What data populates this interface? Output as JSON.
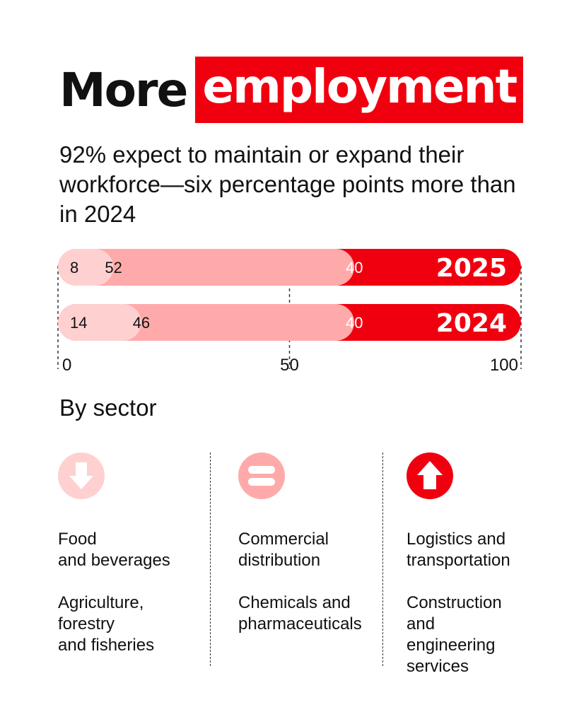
{
  "header": {
    "title_part1": "More",
    "title_part2": "employment",
    "subtitle": "92% expect to maintain or expand their workforce—six percentage points more than in 2024"
  },
  "colors": {
    "decrease": "#ffd0d0",
    "maintain": "#ffaaaa",
    "expand": "#f0000f",
    "accent": "#f0000f"
  },
  "chart_data": {
    "type": "bar",
    "orientation": "horizontal",
    "stacked": true,
    "categories": [
      "2025",
      "2024"
    ],
    "series": [
      {
        "values": [
          8,
          14
        ]
      },
      {
        "values": [
          52,
          46
        ]
      },
      {
        "values": [
          40,
          40
        ]
      }
    ],
    "xlim": [
      0,
      100
    ],
    "xticks": [
      0,
      50,
      100
    ],
    "tick_labels": [
      "0",
      "50",
      "100"
    ]
  },
  "sectors": {
    "title": "By sector",
    "columns": [
      {
        "icon": "down-arrow-icon",
        "names": [
          "Food\nand beverages",
          "Agriculture,\nforestry\nand fisheries"
        ]
      },
      {
        "icon": "equals-icon",
        "names": [
          "Commercial\ndistribution",
          "Chemicals and\npharmaceuticals"
        ]
      },
      {
        "icon": "up-arrow-icon",
        "names": [
          "Logistics and\ntransportation",
          "Construction\nand\nengineering\nservices"
        ]
      }
    ]
  }
}
